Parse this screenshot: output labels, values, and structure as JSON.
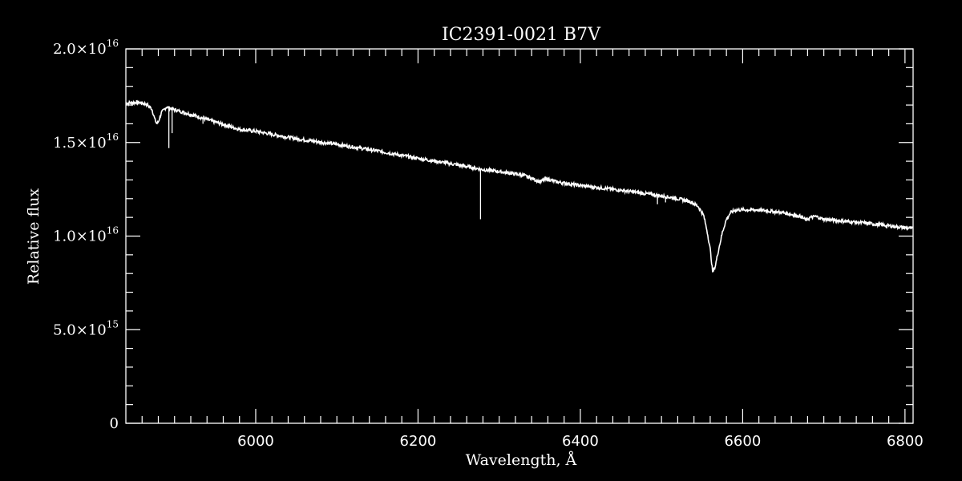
{
  "chart_data": {
    "type": "line",
    "title": "IC2391-0021   B7V",
    "xlabel": "Wavelength, Å",
    "ylabel": "Relative flux",
    "xlim": [
      5840,
      6810
    ],
    "ylim": [
      0,
      2e+16
    ],
    "xticks": [
      6000,
      6200,
      6400,
      6600,
      6800
    ],
    "xtick_labels": [
      "6000",
      "6200",
      "6400",
      "6600",
      "6800"
    ],
    "yticks": [
      {
        "value": 0,
        "mantissa": "0",
        "exponent": ""
      },
      {
        "value": 5000000000000000.0,
        "mantissa": "5.0×10",
        "exponent": "15"
      },
      {
        "value": 1e+16,
        "mantissa": "1.0×10",
        "exponent": "16"
      },
      {
        "value": 1.5e+16,
        "mantissa": "1.5×10",
        "exponent": "16"
      },
      {
        "value": 2e+16,
        "mantissa": "2.0×10",
        "exponent": "16"
      }
    ],
    "grid": false,
    "colors": {
      "background": "#000000",
      "foreground": "#ffffff"
    },
    "series": [
      {
        "x": [
          5840,
          5855,
          5865,
          5872,
          5876,
          5878,
          5880,
          5884,
          5890,
          5900,
          5920,
          5950,
          5980,
          6000,
          6050,
          6100,
          6150,
          6200,
          6250,
          6280,
          6300,
          6330,
          6345,
          6350,
          6355,
          6360,
          6370,
          6400,
          6450,
          6500,
          6520,
          6535,
          6545,
          6552,
          6556,
          6560,
          6563,
          6566,
          6570,
          6575,
          6580,
          6585,
          6592,
          6600,
          6620,
          6650,
          6672,
          6678,
          6684,
          6690,
          6700,
          6750,
          6810
        ],
        "y": [
          1.71e+16,
          1.715e+16,
          1.705e+16,
          1.68e+16,
          1.62e+16,
          1.6e+16,
          1.61e+16,
          1.66e+16,
          1.69e+16,
          1.675e+16,
          1.65e+16,
          1.61e+16,
          1.57e+16,
          1.56e+16,
          1.52e+16,
          1.49e+16,
          1.455e+16,
          1.415e+16,
          1.38e+16,
          1.355e+16,
          1.345e+16,
          1.325e+16,
          1.3e+16,
          1.29e+16,
          1.3e+16,
          1.305e+16,
          1.29e+16,
          1.27e+16,
          1.245e+16,
          1.215e+16,
          1.2e+16,
          1.185e+16,
          1.16e+16,
          1.11e+16,
          1.03e+16,
          9300000000000000.0,
          8100000000000000.0,
          8350000000000000.0,
          9200000000000000.0,
          1.02e+16,
          1.09e+16,
          1.125e+16,
          1.14e+16,
          1.14e+16,
          1.14e+16,
          1.125e+16,
          1.105e+16,
          1.085e+16,
          1.1e+16,
          1.105e+16,
          1.09e+16,
          1.07e+16,
          1.04e+16
        ]
      }
    ],
    "absorption_spikes": [
      {
        "x": 5893,
        "y": 1.47e+16
      },
      {
        "x": 5897,
        "y": 1.55e+16
      },
      {
        "x": 5935,
        "y": 1.6e+16
      },
      {
        "x": 6277,
        "y": 1.09e+16
      },
      {
        "x": 6495,
        "y": 1.17e+16
      },
      {
        "x": 6505,
        "y": 1.18e+16
      }
    ]
  }
}
